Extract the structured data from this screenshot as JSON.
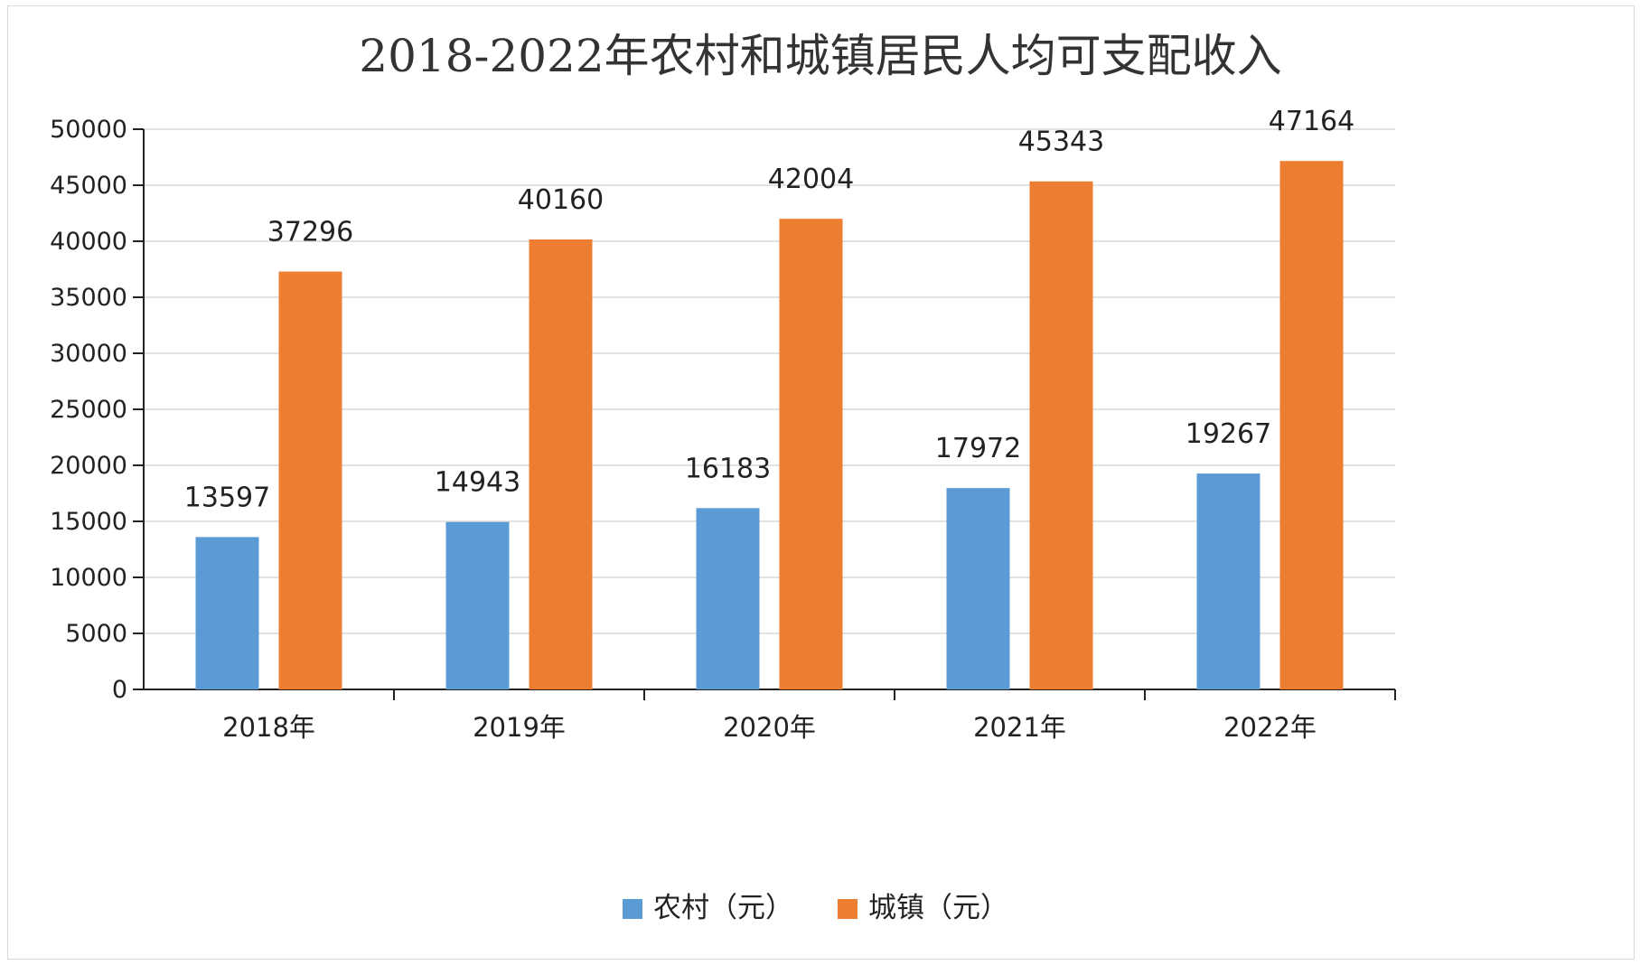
{
  "chart_data": {
    "type": "bar",
    "title": "2018-2022年农村和城镇居民人均可支配收入",
    "categories": [
      "2018年",
      "2019年",
      "2020年",
      "2021年",
      "2022年"
    ],
    "series": [
      {
        "name": "农村（元）",
        "color": "#5b9bd5",
        "values": [
          13597,
          14943,
          16183,
          17972,
          19267
        ]
      },
      {
        "name": "城镇（元）",
        "color": "#ed7d31",
        "values": [
          37296,
          40160,
          42004,
          45343,
          47164
        ]
      }
    ],
    "y_ticks": [
      "0",
      "5000",
      "10000",
      "15000",
      "20000",
      "25000",
      "30000",
      "35000",
      "40000",
      "45000",
      "50000"
    ],
    "ylim": [
      0,
      50000
    ],
    "grid": true,
    "legend_position": "bottom",
    "data_labels": [
      [
        "13597",
        "14943",
        "16183",
        "17972",
        "19267"
      ],
      [
        "37296",
        "40160",
        "42004",
        "45343",
        "47164"
      ]
    ]
  }
}
